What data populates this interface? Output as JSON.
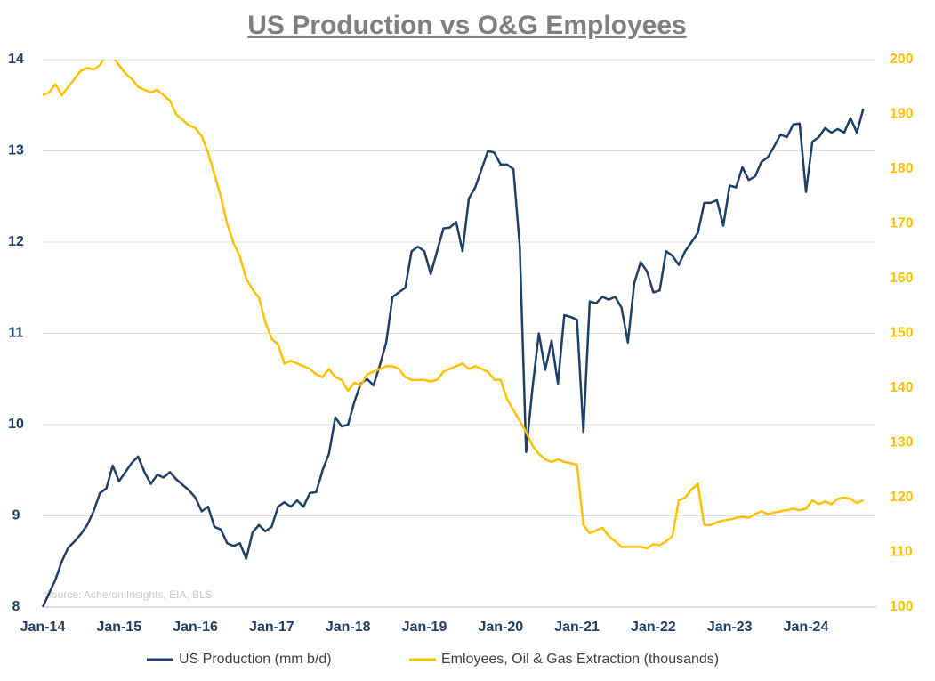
{
  "chart_data": {
    "type": "line",
    "title": "US Production vs O&G Employees",
    "annotation": "Source: Acheron Insights, EIA, BLS",
    "categories": [
      "Jan-14",
      null,
      null,
      null,
      null,
      null,
      null,
      null,
      null,
      null,
      null,
      null,
      "Jan-15",
      null,
      null,
      null,
      null,
      null,
      null,
      null,
      null,
      null,
      null,
      null,
      "Jan-16",
      null,
      null,
      null,
      null,
      null,
      null,
      null,
      null,
      null,
      null,
      null,
      "Jan-17",
      null,
      null,
      null,
      null,
      null,
      null,
      null,
      null,
      null,
      null,
      null,
      "Jan-18",
      null,
      null,
      null,
      null,
      null,
      null,
      null,
      null,
      null,
      null,
      null,
      "Jan-19",
      null,
      null,
      null,
      null,
      null,
      null,
      null,
      null,
      null,
      null,
      null,
      "Jan-20",
      null,
      null,
      null,
      null,
      null,
      null,
      null,
      null,
      null,
      null,
      null,
      "Jan-21",
      null,
      null,
      null,
      null,
      null,
      null,
      null,
      null,
      null,
      null,
      null,
      "Jan-22",
      null,
      null,
      null,
      null,
      null,
      null,
      null,
      null,
      null,
      null,
      null,
      "Jan-23",
      null,
      null,
      null,
      null,
      null,
      null,
      null,
      null,
      null,
      null,
      null,
      "Jan-24",
      null,
      null,
      null,
      null,
      null,
      null,
      null,
      null,
      null
    ],
    "series": [
      {
        "name": "US Production (mm b/d)",
        "color": "#1f3f66",
        "axis": "y",
        "values": [
          8.0,
          8.15,
          8.3,
          8.5,
          8.65,
          8.72,
          8.8,
          8.9,
          9.05,
          9.25,
          9.3,
          9.55,
          9.38,
          9.48,
          9.58,
          9.65,
          9.48,
          9.35,
          9.45,
          9.42,
          9.48,
          9.4,
          9.34,
          9.28,
          9.2,
          9.05,
          9.1,
          8.88,
          8.85,
          8.7,
          8.67,
          8.7,
          8.53,
          8.82,
          8.9,
          8.83,
          8.88,
          9.1,
          9.15,
          9.1,
          9.17,
          9.1,
          9.25,
          9.26,
          9.5,
          9.68,
          10.08,
          9.98,
          10.0,
          10.25,
          10.45,
          10.5,
          10.43,
          10.65,
          10.9,
          11.4,
          11.45,
          11.5,
          11.9,
          11.95,
          11.9,
          11.65,
          11.9,
          12.15,
          12.16,
          12.22,
          11.9,
          12.48,
          12.6,
          12.8,
          13.0,
          12.98,
          12.85,
          12.85,
          12.8,
          11.95,
          9.7,
          10.4,
          11.0,
          10.6,
          10.92,
          10.45,
          11.2,
          11.18,
          11.15,
          9.92,
          11.35,
          11.33,
          11.4,
          11.37,
          11.4,
          11.28,
          10.9,
          11.55,
          11.78,
          11.68,
          11.45,
          11.47,
          11.9,
          11.85,
          11.75,
          11.9,
          12.0,
          12.1,
          12.43,
          12.43,
          12.46,
          12.18,
          12.62,
          12.6,
          12.82,
          12.68,
          12.72,
          12.88,
          12.93,
          13.05,
          13.18,
          13.15,
          13.29,
          13.3,
          12.55,
          13.1,
          13.15,
          13.25,
          13.2,
          13.24,
          13.2,
          13.36,
          13.2,
          13.46
        ]
      },
      {
        "name": "Emloyees, Oil & Gas Extraction (thousands)",
        "color": "#ffc000",
        "axis": "y2",
        "values": [
          193.5,
          194,
          195.5,
          193.5,
          195,
          196.5,
          198,
          198.5,
          198.2,
          199,
          201,
          200.5,
          199,
          197.5,
          196.5,
          195,
          194.5,
          194,
          194.5,
          193.5,
          192.5,
          190,
          189,
          188,
          187.5,
          186,
          183,
          179,
          175,
          170,
          166.5,
          164,
          160,
          158,
          156.5,
          152,
          149,
          148,
          144.5,
          145,
          144.5,
          144,
          143.5,
          142.5,
          142,
          143.5,
          142,
          141.5,
          139.5,
          141,
          140.5,
          142.5,
          143,
          143.5,
          144,
          144,
          143.5,
          142,
          141.5,
          141.5,
          141.5,
          141.2,
          141.5,
          143,
          143.5,
          144,
          144.5,
          143.5,
          144,
          143.5,
          143,
          141.5,
          141.5,
          138,
          136,
          134,
          132,
          129.5,
          128,
          127,
          126.5,
          127,
          126.5,
          126.3,
          126,
          115,
          113.5,
          114,
          114.5,
          113,
          112,
          111,
          111,
          111,
          111,
          110.7,
          111.5,
          111.3,
          112,
          113,
          119.5,
          120,
          121.5,
          122.5,
          115,
          115,
          115.5,
          115.8,
          116,
          116.3,
          116.5,
          116.3,
          117,
          117.5,
          117,
          117.3,
          117.5,
          117.7,
          118,
          117.7,
          118,
          119.5,
          118.8,
          119.3,
          118.8,
          119.8,
          120,
          119.8,
          119,
          119.5
        ]
      }
    ],
    "ylim": [
      8,
      14
    ],
    "yticks": [
      8,
      9,
      10,
      11,
      12,
      13,
      14
    ],
    "y2lim": [
      100,
      200
    ],
    "y2ticks": [
      100,
      110,
      120,
      130,
      140,
      150,
      160,
      170,
      180,
      190,
      200
    ],
    "grid": true,
    "legend": "bottom"
  }
}
